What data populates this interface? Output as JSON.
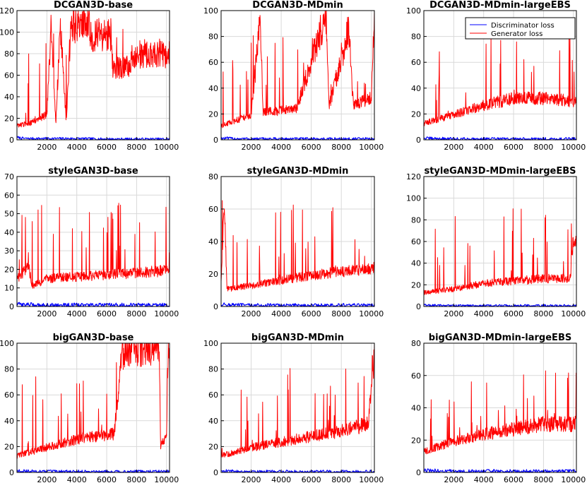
{
  "figure": {
    "colors": {
      "discriminator": "#0000ff",
      "generator": "#ff0000",
      "grid": "#d9d9d9",
      "axis": "#000000"
    },
    "legend": {
      "placement": "top-right",
      "panel": "DCGAN3D-MDmin-largeEBS",
      "entries": [
        "Discriminator loss",
        "Generator loss"
      ]
    }
  },
  "chart_data": [
    {
      "type": "line",
      "title": "DCGAN3D-base",
      "x_ticks": [
        2000,
        4000,
        6000,
        8000,
        10000
      ],
      "y_ticks": [
        0,
        20,
        40,
        60,
        80,
        100,
        120
      ],
      "xlim": [
        0,
        10200
      ],
      "ylim": [
        0,
        120
      ],
      "grid": true,
      "series": [
        {
          "name": "Discriminator loss",
          "points": [
            [
              0,
              2
            ],
            [
              500,
              1
            ],
            [
              2000,
              1
            ],
            [
              4000,
              1
            ],
            [
              6000,
              0.5
            ],
            [
              8000,
              0.5
            ],
            [
              10000,
              0.5
            ]
          ]
        },
        {
          "name": "Generator loss",
          "points": [
            [
              0,
              12
            ],
            [
              1000,
              15
            ],
            [
              2000,
              22
            ],
            [
              2300,
              100
            ],
            [
              2600,
              15
            ],
            [
              2900,
              100
            ],
            [
              3300,
              15
            ],
            [
              3600,
              100
            ],
            [
              4000,
              100
            ],
            [
              4800,
              100
            ],
            [
              5000,
              91
            ],
            [
              6300,
              91
            ],
            [
              6400,
              63
            ],
            [
              7600,
              63
            ],
            [
              7700,
              74
            ],
            [
              10000,
              74
            ]
          ]
        }
      ]
    },
    {
      "type": "line",
      "title": "DCGAN3D-MDmin",
      "x_ticks": [
        2000,
        4000,
        6000,
        8000,
        10000
      ],
      "y_ticks": [
        0,
        20,
        40,
        60,
        80,
        100
      ],
      "xlim": [
        0,
        10200
      ],
      "ylim": [
        0,
        100
      ],
      "grid": true,
      "series": [
        {
          "name": "Discriminator loss",
          "points": [
            [
              0,
              1
            ],
            [
              2000,
              0.5
            ],
            [
              4000,
              0.5
            ],
            [
              6000,
              0.5
            ],
            [
              8000,
              0.5
            ],
            [
              10000,
              0.5
            ]
          ]
        },
        {
          "name": "Generator loss",
          "points": [
            [
              0,
              10
            ],
            [
              2000,
              18
            ],
            [
              2600,
              85
            ],
            [
              2800,
              20
            ],
            [
              5000,
              22
            ],
            [
              7000,
              92
            ],
            [
              7200,
              25
            ],
            [
              8500,
              80
            ],
            [
              8800,
              25
            ],
            [
              10000,
              30
            ],
            [
              10200,
              90
            ]
          ]
        }
      ]
    },
    {
      "type": "line",
      "title": "DCGAN3D-MDmin-largeEBS",
      "x_ticks": [
        2000,
        4000,
        6000,
        8000,
        10000
      ],
      "y_ticks": [
        0,
        20,
        40,
        60,
        80,
        100
      ],
      "xlim": [
        0,
        10200
      ],
      "ylim": [
        0,
        100
      ],
      "grid": true,
      "series": [
        {
          "name": "Discriminator loss",
          "points": [
            [
              0,
              1
            ],
            [
              2000,
              0.5
            ],
            [
              4000,
              0.5
            ],
            [
              6000,
              0.5
            ],
            [
              8000,
              0.5
            ],
            [
              10000,
              0.5
            ]
          ]
        },
        {
          "name": "Generator loss",
          "points": [
            [
              0,
              12
            ],
            [
              2000,
              18
            ],
            [
              4000,
              25
            ],
            [
              6000,
              30
            ],
            [
              8000,
              30
            ],
            [
              10000,
              28
            ]
          ]
        }
      ]
    },
    {
      "type": "line",
      "title": "styleGAN3D-base",
      "x_ticks": [
        2000,
        4000,
        6000,
        8000,
        10000
      ],
      "y_ticks": [
        0,
        10,
        20,
        30,
        40,
        50,
        60,
        70
      ],
      "xlim": [
        0,
        10200
      ],
      "ylim": [
        0,
        70
      ],
      "grid": true,
      "series": [
        {
          "name": "Discriminator loss",
          "points": [
            [
              0,
              1
            ],
            [
              2000,
              0.5
            ],
            [
              4000,
              0.5
            ],
            [
              6000,
              0.5
            ],
            [
              8000,
              0.5
            ],
            [
              10000,
              0.5
            ]
          ]
        },
        {
          "name": "Generator loss",
          "points": [
            [
              0,
              14
            ],
            [
              800,
              20
            ],
            [
              1000,
              10
            ],
            [
              2000,
              14
            ],
            [
              4000,
              15
            ],
            [
              6000,
              16
            ],
            [
              8000,
              17
            ],
            [
              10000,
              18
            ]
          ]
        }
      ]
    },
    {
      "type": "line",
      "title": "styleGAN3D-MDmin",
      "x_ticks": [
        2000,
        4000,
        6000,
        8000,
        10000
      ],
      "y_ticks": [
        0,
        20,
        40,
        60,
        80
      ],
      "xlim": [
        0,
        10200
      ],
      "ylim": [
        0,
        80
      ],
      "grid": true,
      "series": [
        {
          "name": "Discriminator loss",
          "points": [
            [
              0,
              1
            ],
            [
              2000,
              0.5
            ],
            [
              4000,
              0.5
            ],
            [
              6000,
              0.5
            ],
            [
              8000,
              0.5
            ],
            [
              10000,
              0.5
            ]
          ]
        },
        {
          "name": "Generator loss",
          "points": [
            [
              0,
              15
            ],
            [
              200,
              60
            ],
            [
              400,
              10
            ],
            [
              2000,
              12
            ],
            [
              4000,
              15
            ],
            [
              6000,
              18
            ],
            [
              8000,
              20
            ],
            [
              10000,
              22
            ]
          ]
        }
      ]
    },
    {
      "type": "line",
      "title": "styleGAN3D-MDmin-largeEBS",
      "x_ticks": [
        2000,
        4000,
        6000,
        8000,
        10000
      ],
      "y_ticks": [
        0,
        20,
        40,
        60,
        80,
        100,
        120
      ],
      "xlim": [
        0,
        10200
      ],
      "ylim": [
        0,
        120
      ],
      "grid": true,
      "series": [
        {
          "name": "Discriminator loss",
          "points": [
            [
              0,
              1
            ],
            [
              2000,
              0.5
            ],
            [
              4000,
              0.5
            ],
            [
              6000,
              0.5
            ],
            [
              8000,
              0.5
            ],
            [
              10000,
              0.5
            ]
          ]
        },
        {
          "name": "Generator loss",
          "points": [
            [
              0,
              12
            ],
            [
              2000,
              15
            ],
            [
              4000,
              20
            ],
            [
              6000,
              22
            ],
            [
              8000,
              24
            ],
            [
              9800,
              24
            ],
            [
              10000,
              60
            ],
            [
              10200,
              58
            ]
          ]
        }
      ]
    },
    {
      "type": "line",
      "title": "bigGAN3D-base",
      "x_ticks": [
        2000,
        4000,
        6000,
        8000,
        10000
      ],
      "y_ticks": [
        0,
        20,
        40,
        60,
        80,
        100
      ],
      "xlim": [
        0,
        10200
      ],
      "ylim": [
        0,
        100
      ],
      "grid": true,
      "series": [
        {
          "name": "Discriminator loss",
          "points": [
            [
              0,
              1
            ],
            [
              2000,
              0.5
            ],
            [
              4000,
              0.5
            ],
            [
              6000,
              0.5
            ],
            [
              8000,
              0.5
            ],
            [
              10000,
              0.5
            ]
          ]
        },
        {
          "name": "Generator loss",
          "points": [
            [
              0,
              12
            ],
            [
              2000,
              18
            ],
            [
              4000,
              24
            ],
            [
              6500,
              28
            ],
            [
              7000,
              85
            ],
            [
              7500,
              90
            ],
            [
              9500,
              92
            ],
            [
              9600,
              20
            ],
            [
              10000,
              25
            ],
            [
              10100,
              90
            ]
          ]
        }
      ]
    },
    {
      "type": "line",
      "title": "bigGAN3D-MDmin",
      "x_ticks": [
        2000,
        4000,
        6000,
        8000,
        10000
      ],
      "y_ticks": [
        0,
        20,
        40,
        60,
        80,
        100
      ],
      "xlim": [
        0,
        10200
      ],
      "ylim": [
        0,
        100
      ],
      "grid": true,
      "series": [
        {
          "name": "Discriminator loss",
          "points": [
            [
              0,
              1
            ],
            [
              2000,
              0.5
            ],
            [
              4000,
              0.5
            ],
            [
              6000,
              0.5
            ],
            [
              8000,
              0.5
            ],
            [
              10000,
              0.5
            ]
          ]
        },
        {
          "name": "Generator loss",
          "points": [
            [
              0,
              12
            ],
            [
              2000,
              18
            ],
            [
              4000,
              22
            ],
            [
              6000,
              26
            ],
            [
              8000,
              30
            ],
            [
              9800,
              35
            ],
            [
              10100,
              80
            ]
          ]
        }
      ]
    },
    {
      "type": "line",
      "title": "bigGAN3D-MDmin-largeEBS",
      "x_ticks": [
        2000,
        4000,
        6000,
        8000,
        10000
      ],
      "y_ticks": [
        0,
        20,
        40,
        60,
        80
      ],
      "xlim": [
        0,
        10200
      ],
      "ylim": [
        0,
        80
      ],
      "grid": true,
      "series": [
        {
          "name": "Discriminator loss",
          "points": [
            [
              0,
              1
            ],
            [
              2000,
              0.5
            ],
            [
              4000,
              0.5
            ],
            [
              6000,
              0.5
            ],
            [
              8000,
              0.5
            ],
            [
              10000,
              0.5
            ]
          ]
        },
        {
          "name": "Generator loss",
          "points": [
            [
              0,
              12
            ],
            [
              2000,
              18
            ],
            [
              4000,
              22
            ],
            [
              6000,
              25
            ],
            [
              8000,
              28
            ],
            [
              10000,
              28
            ]
          ]
        }
      ]
    }
  ]
}
